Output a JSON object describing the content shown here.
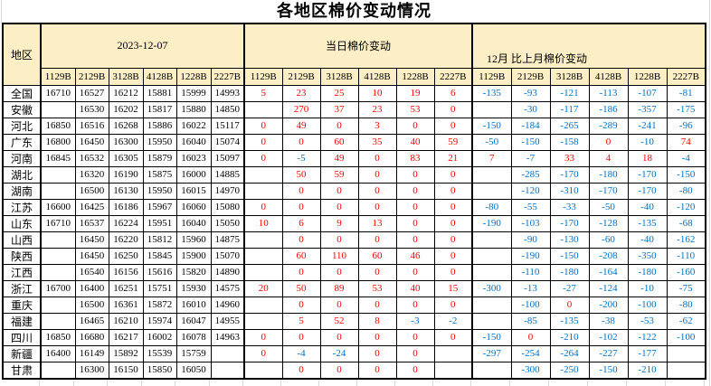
{
  "title": "各地区棉价变动情况",
  "colors": {
    "positive_change": "#FF0000",
    "negative_change": "#0070C0",
    "header_fill": "#FCEEC5",
    "grid": "#000000",
    "minor_grid": "#D9D9D9"
  },
  "header": {
    "region": "地区",
    "groups": [
      {
        "label": "2023-12-07"
      },
      {
        "label": "当日棉价变动"
      },
      {
        "label": "12月 比上月棉价变动"
      }
    ],
    "codes": [
      "1129B",
      "2129B",
      "3128B",
      "4128B",
      "1228B",
      "2227B"
    ]
  },
  "rows": [
    {
      "region": "全国",
      "prices": [
        16710,
        16527,
        16212,
        15881,
        15999,
        14993
      ],
      "daily": [
        5,
        23,
        25,
        10,
        19,
        6
      ],
      "monthly": [
        -135,
        -93,
        -121,
        -113,
        -107,
        -81
      ]
    },
    {
      "region": "安徽",
      "prices": [
        null,
        16530,
        16202,
        15817,
        15880,
        14850
      ],
      "daily": [
        null,
        270,
        37,
        23,
        53,
        0
      ],
      "monthly": [
        null,
        -30,
        -117,
        -186,
        -357,
        -175
      ]
    },
    {
      "region": "河北",
      "prices": [
        16850,
        16516,
        16268,
        15886,
        16022,
        15117
      ],
      "daily": [
        0,
        49,
        0,
        3,
        0,
        0
      ],
      "monthly": [
        -150,
        -184,
        -265,
        -289,
        -241,
        -96
      ]
    },
    {
      "region": "广东",
      "prices": [
        16800,
        16450,
        16300,
        15950,
        16040,
        15074
      ],
      "daily": [
        0,
        0,
        60,
        35,
        40,
        59
      ],
      "monthly": [
        -50,
        -150,
        -158,
        0,
        -10,
        74
      ]
    },
    {
      "region": "河南",
      "prices": [
        16845,
        16532,
        16305,
        15879,
        16023,
        15097
      ],
      "daily": [
        0,
        -5,
        49,
        0,
        83,
        21
      ],
      "monthly": [
        7,
        -7,
        33,
        4,
        18,
        -4
      ]
    },
    {
      "region": "湖北",
      "prices": [
        null,
        16320,
        16190,
        15875,
        16000,
        14885
      ],
      "daily": [
        null,
        50,
        59,
        0,
        0,
        0
      ],
      "monthly": [
        null,
        -285,
        -170,
        -180,
        -170,
        -150
      ]
    },
    {
      "region": "湖南",
      "prices": [
        null,
        16500,
        16130,
        15950,
        16015,
        14970
      ],
      "daily": [
        null,
        0,
        0,
        0,
        0,
        0
      ],
      "monthly": [
        null,
        -120,
        -310,
        -170,
        -170,
        -80
      ]
    },
    {
      "region": "江苏",
      "prices": [
        16600,
        16425,
        16186,
        15967,
        16060,
        15080
      ],
      "daily": [
        0,
        0,
        0,
        0,
        0,
        0
      ],
      "monthly": [
        -80,
        -55,
        -33,
        -50,
        -40,
        -120
      ]
    },
    {
      "region": "山东",
      "prices": [
        16710,
        16537,
        16224,
        15951,
        16040,
        15050
      ],
      "daily": [
        10,
        6,
        9,
        13,
        0,
        0
      ],
      "monthly": [
        -190,
        -103,
        -170,
        -128,
        -135,
        -68
      ]
    },
    {
      "region": "山西",
      "prices": [
        null,
        16450,
        16220,
        15812,
        15960,
        14875
      ],
      "daily": [
        null,
        0,
        0,
        0,
        0,
        0
      ],
      "monthly": [
        null,
        -90,
        -130,
        -60,
        -40,
        -162
      ]
    },
    {
      "region": "陕西",
      "prices": [
        null,
        16450,
        16250,
        15845,
        15900,
        15070
      ],
      "daily": [
        null,
        60,
        110,
        60,
        46,
        0
      ],
      "monthly": [
        null,
        -190,
        -150,
        -208,
        -350,
        -110
      ]
    },
    {
      "region": "江西",
      "prices": [
        null,
        16540,
        16156,
        15616,
        15820,
        14890
      ],
      "daily": [
        null,
        0,
        0,
        0,
        0,
        0
      ],
      "monthly": [
        null,
        -110,
        -180,
        -164,
        -180,
        -160
      ]
    },
    {
      "region": "浙江",
      "prices": [
        16700,
        16400,
        16251,
        15751,
        15930,
        14575
      ],
      "daily": [
        20,
        50,
        89,
        53,
        40,
        15
      ],
      "monthly": [
        -300,
        -13,
        -27,
        -124,
        -10,
        -75
      ]
    },
    {
      "region": "重庆",
      "prices": [
        null,
        16500,
        16361,
        15872,
        16010,
        14960
      ],
      "daily": [
        null,
        0,
        0,
        0,
        0,
        0
      ],
      "monthly": [
        null,
        -100,
        0,
        -200,
        -100,
        -80
      ]
    },
    {
      "region": "福建",
      "prices": [
        null,
        16465,
        16210,
        15974,
        16047,
        14955
      ],
      "daily": [
        null,
        5,
        52,
        8,
        -3,
        -2
      ],
      "monthly": [
        null,
        -85,
        -135,
        -38,
        -53,
        -62
      ]
    },
    {
      "region": "四川",
      "prices": [
        16850,
        16680,
        16217,
        16002,
        16078,
        14963
      ],
      "daily": [
        0,
        0,
        0,
        0,
        0,
        0
      ],
      "monthly": [
        -150,
        0,
        -210,
        -102,
        -122,
        -100
      ]
    },
    {
      "region": "新疆",
      "prices": [
        16400,
        16149,
        15892,
        15539,
        15759,
        null
      ],
      "daily": [
        0,
        -4,
        -24,
        0,
        0,
        null
      ],
      "monthly": [
        -297,
        -254,
        -264,
        -227,
        -177,
        null
      ]
    },
    {
      "region": "甘肃",
      "prices": [
        null,
        16300,
        16150,
        15850,
        16050,
        null
      ],
      "daily": [
        null,
        0,
        0,
        0,
        0,
        null
      ],
      "monthly": [
        null,
        -300,
        -250,
        -150,
        -210,
        null
      ]
    }
  ]
}
